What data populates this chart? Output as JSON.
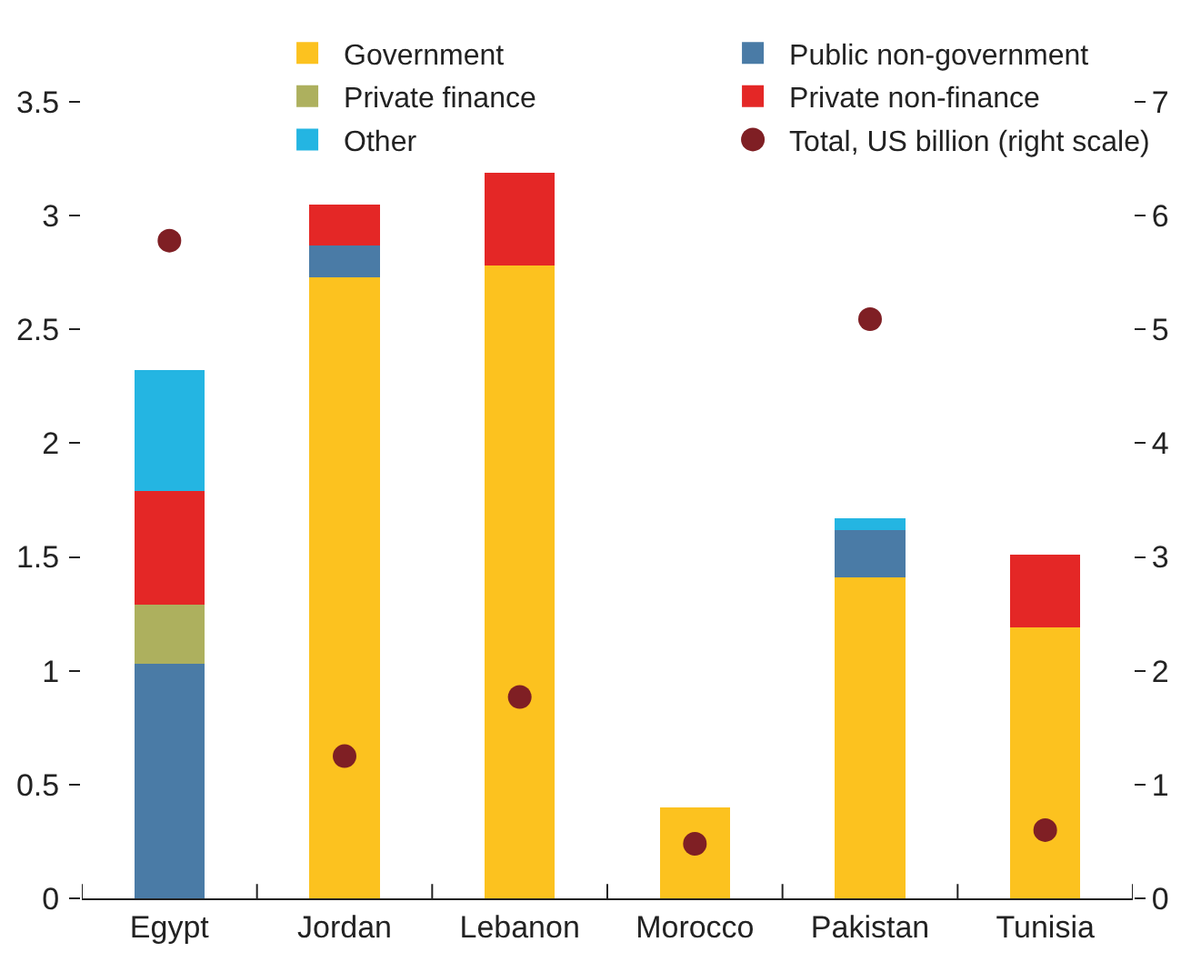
{
  "chart_data": {
    "type": "bar",
    "stacked": true,
    "categories": [
      "Egypt",
      "Jordan",
      "Lebanon",
      "Morocco",
      "Pakistan",
      "Tunisia"
    ],
    "series": [
      {
        "name": "Government",
        "color": "#fcc21f",
        "values": [
          null,
          2.73,
          2.78,
          0.4,
          1.41,
          1.19
        ]
      },
      {
        "name": "Public non-government",
        "color": "#4a7ba6",
        "values": [
          1.03,
          0.14,
          null,
          null,
          0.21,
          null
        ]
      },
      {
        "name": "Private finance",
        "color": "#adb05e",
        "values": [
          0.26,
          null,
          null,
          null,
          null,
          null
        ]
      },
      {
        "name": "Private non-finance",
        "color": "#e42726",
        "values": [
          0.5,
          0.18,
          0.41,
          null,
          null,
          0.32
        ]
      },
      {
        "name": "Other",
        "color": "#24b5e2",
        "values": [
          0.53,
          null,
          null,
          null,
          0.05,
          null
        ]
      },
      {
        "name": "Total, US billion (right scale)",
        "type": "scatter",
        "axis": "y2",
        "marker": "circle",
        "color": "#7f1f24",
        "values": [
          5.78,
          1.25,
          1.77,
          0.48,
          5.09,
          0.6
        ]
      }
    ],
    "ylim": [
      0,
      3.5
    ],
    "yticks": [
      0,
      0.5,
      1,
      1.5,
      2,
      2.5,
      3,
      3.5
    ],
    "y2lim": [
      0,
      7
    ],
    "y2ticks": [
      0,
      1,
      2,
      3,
      4,
      5,
      6,
      7
    ],
    "grid": false,
    "legend": "top"
  }
}
